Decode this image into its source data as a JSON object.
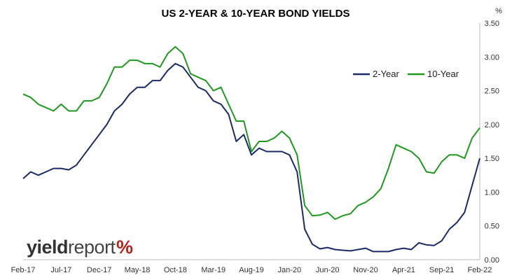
{
  "chart_data": {
    "type": "line",
    "title": "US 2-YEAR & 10-YEAR BOND YIELDS",
    "y_unit": "%",
    "ylim": [
      0,
      3.5
    ],
    "y_ticks": [
      "0.00",
      "0.50",
      "1.00",
      "1.50",
      "2.00",
      "2.50",
      "3.00",
      "3.50"
    ],
    "x_ticks": [
      "Feb-17",
      "Jul-17",
      "Dec-17",
      "May-18",
      "Oct-18",
      "Mar-19",
      "Aug-19",
      "Jan-20",
      "Jun-20",
      "Nov-20",
      "Apr-21",
      "Sep-21",
      "Feb-22"
    ],
    "xlim": [
      "2017-02",
      "2022-02"
    ],
    "grid": false,
    "legend_position": "top-right",
    "series": [
      {
        "name": "2-Year",
        "color": "#1b2a6b",
        "x": [
          "2017-02",
          "2017-03",
          "2017-04",
          "2017-05",
          "2017-06",
          "2017-07",
          "2017-08",
          "2017-09",
          "2017-10",
          "2017-11",
          "2017-12",
          "2018-01",
          "2018-02",
          "2018-03",
          "2018-04",
          "2018-05",
          "2018-06",
          "2018-07",
          "2018-08",
          "2018-09",
          "2018-10",
          "2018-11",
          "2018-12",
          "2019-01",
          "2019-02",
          "2019-03",
          "2019-04",
          "2019-05",
          "2019-06",
          "2019-07",
          "2019-08",
          "2019-09",
          "2019-10",
          "2019-11",
          "2019-12",
          "2020-01",
          "2020-02",
          "2020-03",
          "2020-04",
          "2020-05",
          "2020-06",
          "2020-07",
          "2020-08",
          "2020-09",
          "2020-10",
          "2020-11",
          "2020-12",
          "2021-01",
          "2021-02",
          "2021-03",
          "2021-04",
          "2021-05",
          "2021-06",
          "2021-07",
          "2021-08",
          "2021-09",
          "2021-10",
          "2021-11",
          "2021-12",
          "2022-01",
          "2022-02"
        ],
        "values": [
          1.2,
          1.3,
          1.25,
          1.3,
          1.35,
          1.35,
          1.33,
          1.4,
          1.55,
          1.7,
          1.85,
          2.0,
          2.2,
          2.3,
          2.45,
          2.55,
          2.55,
          2.65,
          2.65,
          2.8,
          2.9,
          2.85,
          2.7,
          2.55,
          2.5,
          2.35,
          2.3,
          2.15,
          1.75,
          1.85,
          1.55,
          1.65,
          1.6,
          1.6,
          1.6,
          1.55,
          1.3,
          0.45,
          0.23,
          0.16,
          0.18,
          0.15,
          0.14,
          0.13,
          0.15,
          0.17,
          0.12,
          0.12,
          0.12,
          0.15,
          0.17,
          0.15,
          0.25,
          0.22,
          0.21,
          0.28,
          0.45,
          0.55,
          0.7,
          1.1,
          1.5
        ]
      },
      {
        "name": "10-Year",
        "color": "#1f9a1f",
        "x": [
          "2017-02",
          "2017-03",
          "2017-04",
          "2017-05",
          "2017-06",
          "2017-07",
          "2017-08",
          "2017-09",
          "2017-10",
          "2017-11",
          "2017-12",
          "2018-01",
          "2018-02",
          "2018-03",
          "2018-04",
          "2018-05",
          "2018-06",
          "2018-07",
          "2018-08",
          "2018-09",
          "2018-10",
          "2018-11",
          "2018-12",
          "2019-01",
          "2019-02",
          "2019-03",
          "2019-04",
          "2019-05",
          "2019-06",
          "2019-07",
          "2019-08",
          "2019-09",
          "2019-10",
          "2019-11",
          "2019-12",
          "2020-01",
          "2020-02",
          "2020-03",
          "2020-04",
          "2020-05",
          "2020-06",
          "2020-07",
          "2020-08",
          "2020-09",
          "2020-10",
          "2020-11",
          "2020-12",
          "2021-01",
          "2021-02",
          "2021-03",
          "2021-04",
          "2021-05",
          "2021-06",
          "2021-07",
          "2021-08",
          "2021-09",
          "2021-10",
          "2021-11",
          "2021-12",
          "2022-01",
          "2022-02"
        ],
        "values": [
          2.45,
          2.4,
          2.3,
          2.25,
          2.2,
          2.3,
          2.2,
          2.2,
          2.35,
          2.35,
          2.4,
          2.6,
          2.85,
          2.85,
          2.95,
          2.95,
          2.9,
          2.9,
          2.85,
          3.05,
          3.15,
          3.05,
          2.75,
          2.7,
          2.65,
          2.5,
          2.55,
          2.3,
          2.05,
          2.05,
          1.6,
          1.75,
          1.75,
          1.8,
          1.9,
          1.8,
          1.55,
          0.8,
          0.65,
          0.66,
          0.7,
          0.6,
          0.65,
          0.68,
          0.8,
          0.85,
          0.93,
          1.05,
          1.35,
          1.7,
          1.65,
          1.6,
          1.5,
          1.3,
          1.28,
          1.45,
          1.55,
          1.55,
          1.5,
          1.8,
          1.95
        ]
      }
    ]
  },
  "logo": {
    "text_bold": "yield",
    "text_light": "report",
    "symbol": "%"
  }
}
